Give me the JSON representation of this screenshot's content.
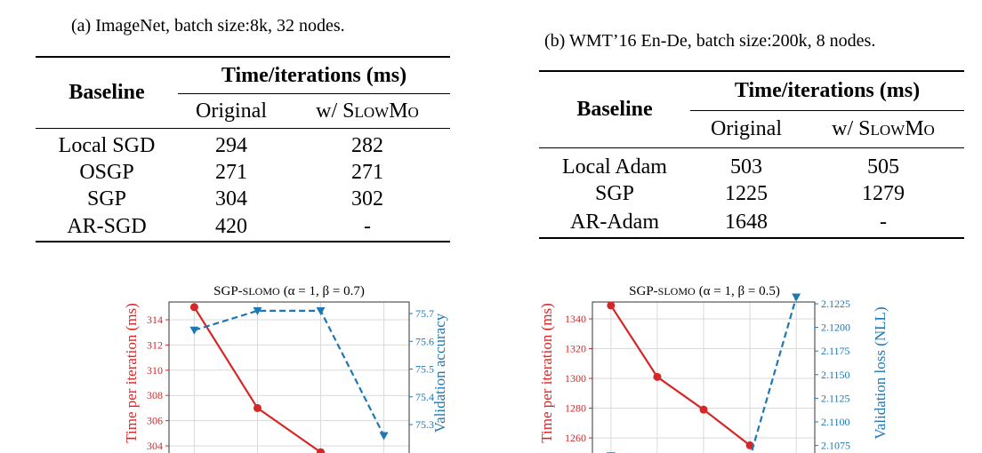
{
  "tables": [
    {
      "caption": "(a) ImageNet, batch size:8k, 32 nodes.",
      "header_row": "Baseline",
      "header_group": "Time/iterations (ms)",
      "col_original": "Original",
      "col_slowmo_prefix": "w/ ",
      "col_slowmo_name": "SlowMo",
      "rows": [
        {
          "name": "Local SGD",
          "original": "294",
          "slowmo": "282"
        },
        {
          "name": "OSGP",
          "original": "271",
          "slowmo": "271"
        },
        {
          "name": "SGP",
          "original": "304",
          "slowmo": "302"
        },
        {
          "name": "AR-SGD",
          "original": "420",
          "slowmo": "-"
        }
      ]
    },
    {
      "caption": "(b) WMT’16 En-De, batch size:200k, 8 nodes.",
      "header_row": "Baseline",
      "header_group": "Time/iterations (ms)",
      "col_original": "Original",
      "col_slowmo_prefix": "w/ ",
      "col_slowmo_name": "SlowMo",
      "rows": [
        {
          "name": "Local Adam",
          "original": "503",
          "slowmo": "505"
        },
        {
          "name": "SGP",
          "original": "1225",
          "slowmo": "1279"
        },
        {
          "name": "AR-Adam",
          "original": "1648",
          "slowmo": "-"
        }
      ]
    }
  ],
  "chart_data": [
    {
      "type": "line",
      "title_prefix": "SGP-",
      "title_method": "SLOMO",
      "title_params": "(α = 1, β = 0.7)",
      "ylabel_left": "Time per iteration (ms)",
      "ylabel_right": "Validation accuracy",
      "left_ticks": [
        "314",
        "312",
        "310",
        "308",
        "306",
        "304"
      ],
      "right_ticks": [
        "75.7",
        "75.6",
        "75.5",
        "75.4",
        "75.3"
      ],
      "left_color": "#d62728",
      "right_color": "#1f77b4",
      "series": [
        {
          "name": "time",
          "x": [
            1,
            2,
            3
          ],
          "values": [
            315,
            307,
            303.5
          ]
        },
        {
          "name": "accuracy",
          "x": [
            1,
            2,
            3,
            4
          ],
          "values": [
            75.64,
            75.71,
            75.71,
            75.26
          ]
        }
      ]
    },
    {
      "type": "line",
      "title_prefix": "SGP-",
      "title_method": "SLOMO",
      "title_params": "(α = 1, β = 0.5)",
      "ylabel_left": "Time per iteration (ms)",
      "ylabel_right": "Validation loss (NLL)",
      "left_ticks": [
        "1340",
        "1320",
        "1300",
        "1280",
        "1260"
      ],
      "right_ticks": [
        "2.1225",
        "2.1200",
        "2.1175",
        "2.1150",
        "2.1125",
        "2.1100",
        "2.1075"
      ],
      "left_color": "#d62728",
      "right_color": "#1f77b4",
      "series": [
        {
          "name": "time",
          "x": [
            1,
            2,
            3,
            4
          ],
          "values": [
            1349,
            1301,
            1279,
            1255
          ]
        },
        {
          "name": "loss",
          "x": [
            1,
            4,
            5
          ],
          "values": [
            2.1064,
            2.1062,
            2.1232
          ]
        }
      ]
    }
  ]
}
